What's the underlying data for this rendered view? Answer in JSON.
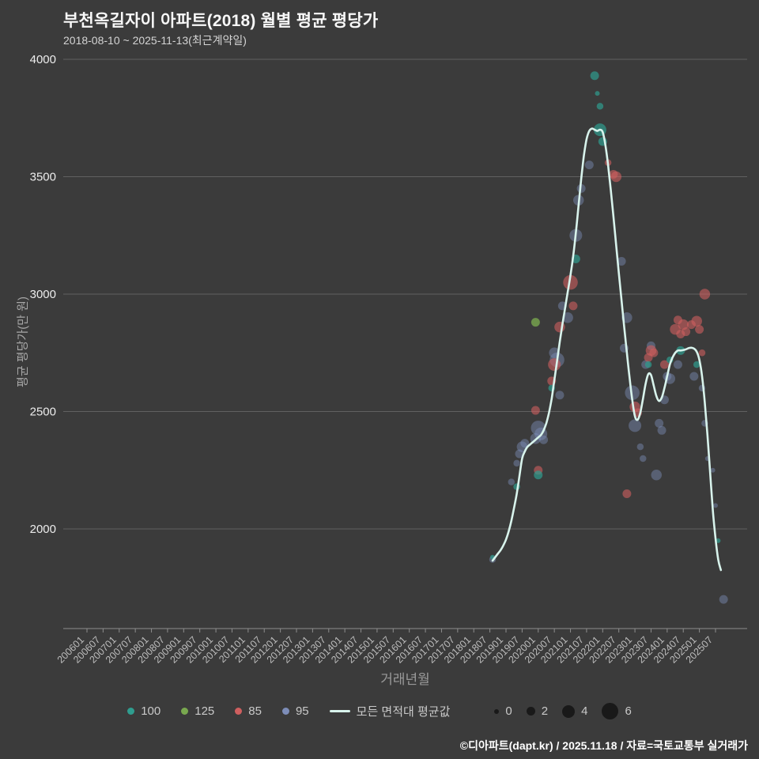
{
  "header": {
    "title": "부천옥길자이 아파트(2018) 월별 평균 평당가",
    "subtitle": "2018-08-10 ~ 2025-11-13(최근계약일)"
  },
  "footer": {
    "credit": "©디아파트(dapt.kr) / 2025.11.18 / 자료=국토교통부 실거래가"
  },
  "chart_data": {
    "type": "scatter",
    "title": "부천옥길자이 아파트(2018) 월별 평균 평당가",
    "subtitle": "2018-08-10 ~ 2025-11-13(최근계약일)",
    "xlabel": "거래년월",
    "ylabel": "평균 평당가(만 원)",
    "grid": true,
    "ylim": [
      1576,
      4000
    ],
    "y_ticks": [
      4000,
      3500,
      3000,
      2500,
      2000
    ],
    "x_ticks": [
      "200601",
      "200607",
      "200701",
      "200707",
      "200801",
      "200807",
      "200901",
      "200907",
      "201001",
      "201007",
      "201101",
      "201107",
      "201201",
      "201207",
      "201301",
      "201307",
      "201401",
      "201407",
      "201501",
      "201507",
      "201601",
      "201607",
      "201701",
      "201707",
      "201801",
      "201807",
      "201901",
      "201907",
      "202001",
      "202007",
      "202101",
      "202107",
      "202201",
      "202207",
      "202301",
      "202307",
      "202401",
      "202407",
      "202501",
      "202507"
    ],
    "colors": {
      "100": "#2f9d8f",
      "125": "#79a84f",
      "85": "#cf5f5f",
      "95": "#7d8db8",
      "avg_line": "#d8f3ec"
    },
    "opacity": {
      "100": 0.7,
      "125": 0.8,
      "85": 0.6,
      "95": 0.45
    },
    "draw_order": [
      "95",
      "85",
      "125",
      "100"
    ],
    "legend": [
      {
        "label": "100",
        "color": "#2f9d8f",
        "type": "dot"
      },
      {
        "label": "125",
        "color": "#79a84f",
        "type": "dot"
      },
      {
        "label": "85",
        "color": "#cf5f5f",
        "type": "dot"
      },
      {
        "label": "95",
        "color": "#7d8db8",
        "type": "dot"
      },
      {
        "label": "모든 면적대 평균값",
        "color": "#d8f3ec",
        "type": "line"
      }
    ],
    "size_legend": [
      0,
      2,
      4,
      6
    ],
    "avg_line": {
      "name": "모든 면적대 평균값",
      "points": [
        [
          "201808",
          1865
        ],
        [
          "201809",
          1880
        ],
        [
          "201810",
          1895
        ],
        [
          "201811",
          1910
        ],
        [
          "201812",
          1930
        ],
        [
          "201901",
          1955
        ],
        [
          "201902",
          1990
        ],
        [
          "201903",
          2035
        ],
        [
          "201904",
          2090
        ],
        [
          "201905",
          2150
        ],
        [
          "201906",
          2225
        ],
        [
          "201907",
          2300
        ],
        [
          "201908",
          2330
        ],
        [
          "201909",
          2350
        ],
        [
          "201910",
          2360
        ],
        [
          "201911",
          2370
        ],
        [
          "201912",
          2380
        ],
        [
          "202001",
          2390
        ],
        [
          "202002",
          2400
        ],
        [
          "202003",
          2420
        ],
        [
          "202004",
          2450
        ],
        [
          "202005",
          2495
        ],
        [
          "202006",
          2555
        ],
        [
          "202007",
          2635
        ],
        [
          "202008",
          2715
        ],
        [
          "202009",
          2795
        ],
        [
          "202010",
          2870
        ],
        [
          "202011",
          2940
        ],
        [
          "202012",
          3010
        ],
        [
          "202101",
          3080
        ],
        [
          "202102",
          3160
        ],
        [
          "202103",
          3260
        ],
        [
          "202104",
          3375
        ],
        [
          "202105",
          3490
        ],
        [
          "202106",
          3590
        ],
        [
          "202107",
          3660
        ],
        [
          "202108",
          3695
        ],
        [
          "202109",
          3705
        ],
        [
          "202110",
          3700
        ],
        [
          "202111",
          3695
        ],
        [
          "202112",
          3700
        ],
        [
          "202201",
          3690
        ],
        [
          "202202",
          3635
        ],
        [
          "202203",
          3550
        ],
        [
          "202204",
          3445
        ],
        [
          "202205",
          3330
        ],
        [
          "202206",
          3210
        ],
        [
          "202207",
          3090
        ],
        [
          "202208",
          2975
        ],
        [
          "202209",
          2860
        ],
        [
          "202210",
          2750
        ],
        [
          "202211",
          2645
        ],
        [
          "202212",
          2550
        ],
        [
          "202301",
          2480
        ],
        [
          "202302",
          2465
        ],
        [
          "202303",
          2495
        ],
        [
          "202304",
          2555
        ],
        [
          "202305",
          2620
        ],
        [
          "202306",
          2660
        ],
        [
          "202307",
          2655
        ],
        [
          "202308",
          2610
        ],
        [
          "202309",
          2565
        ],
        [
          "202310",
          2545
        ],
        [
          "202311",
          2560
        ],
        [
          "202312",
          2600
        ],
        [
          "202401",
          2650
        ],
        [
          "202402",
          2700
        ],
        [
          "202403",
          2730
        ],
        [
          "202404",
          2750
        ],
        [
          "202405",
          2760
        ],
        [
          "202406",
          2760
        ],
        [
          "202407",
          2762
        ],
        [
          "202408",
          2765
        ],
        [
          "202409",
          2770
        ],
        [
          "202410",
          2772
        ],
        [
          "202411",
          2768
        ],
        [
          "202412",
          2755
        ],
        [
          "202501",
          2720
        ],
        [
          "202502",
          2650
        ],
        [
          "202503",
          2540
        ],
        [
          "202504",
          2400
        ],
        [
          "202505",
          2240
        ],
        [
          "202506",
          2080
        ],
        [
          "202507",
          1960
        ],
        [
          "202508",
          1870
        ],
        [
          "202509",
          1825
        ]
      ]
    },
    "bubbles_format": [
      "series",
      "yyyymm",
      "price",
      "count"
    ],
    "bubbles": [
      [
        "95",
        "201808",
        1870,
        1
      ],
      [
        "95",
        "201903",
        2200,
        1
      ],
      [
        "95",
        "201905",
        2280,
        1
      ],
      [
        "95",
        "201906",
        2320,
        2
      ],
      [
        "95",
        "201907",
        2350,
        3
      ],
      [
        "95",
        "201908",
        2365,
        2
      ],
      [
        "95",
        "201912",
        2385,
        3
      ],
      [
        "95",
        "202001",
        2430,
        5
      ],
      [
        "95",
        "202002",
        2405,
        4
      ],
      [
        "95",
        "202003",
        2380,
        2
      ],
      [
        "95",
        "202007",
        2750,
        3
      ],
      [
        "95",
        "202008",
        2720,
        5
      ],
      [
        "95",
        "202009",
        2570,
        2
      ],
      [
        "95",
        "202010",
        2950,
        2
      ],
      [
        "95",
        "202012",
        2900,
        3
      ],
      [
        "95",
        "202103",
        3250,
        4
      ],
      [
        "95",
        "202104",
        3400,
        3
      ],
      [
        "95",
        "202105",
        3450,
        2
      ],
      [
        "95",
        "202108",
        3550,
        2
      ],
      [
        "95",
        "202208",
        3140,
        2
      ],
      [
        "95",
        "202209",
        2770,
        2
      ],
      [
        "95",
        "202210",
        2900,
        3
      ],
      [
        "95",
        "202212",
        2580,
        5
      ],
      [
        "95",
        "202301",
        2440,
        4
      ],
      [
        "95",
        "202303",
        2350,
        1
      ],
      [
        "95",
        "202304",
        2300,
        1
      ],
      [
        "95",
        "202305",
        2700,
        2
      ],
      [
        "95",
        "202307",
        2780,
        2
      ],
      [
        "95",
        "202309",
        2230,
        3
      ],
      [
        "95",
        "202310",
        2450,
        2
      ],
      [
        "95",
        "202311",
        2420,
        2
      ],
      [
        "95",
        "202312",
        2550,
        2
      ],
      [
        "95",
        "202401",
        2650,
        2
      ],
      [
        "95",
        "202402",
        2640,
        3
      ],
      [
        "95",
        "202405",
        2700,
        2
      ],
      [
        "95",
        "202411",
        2650,
        2
      ],
      [
        "95",
        "202502",
        2600,
        1
      ],
      [
        "95",
        "202503",
        2450,
        1
      ],
      [
        "95",
        "202504",
        2300,
        0
      ],
      [
        "95",
        "202506",
        2250,
        0
      ],
      [
        "95",
        "202507",
        2100,
        0
      ],
      [
        "95",
        "202510",
        1700,
        2
      ],
      [
        "85",
        "201912",
        2505,
        2
      ],
      [
        "85",
        "202001",
        2250,
        2
      ],
      [
        "85",
        "202006",
        2630,
        2
      ],
      [
        "85",
        "202007",
        2700,
        4
      ],
      [
        "85",
        "202009",
        2860,
        3
      ],
      [
        "85",
        "202101",
        3050,
        5
      ],
      [
        "85",
        "202102",
        2950,
        2
      ],
      [
        "85",
        "202203",
        3560,
        1
      ],
      [
        "85",
        "202205",
        3510,
        2
      ],
      [
        "85",
        "202206",
        3500,
        3
      ],
      [
        "85",
        "202301",
        2520,
        3
      ],
      [
        "85",
        "202302",
        2495,
        2
      ],
      [
        "85",
        "202210",
        2150,
        2
      ],
      [
        "85",
        "202306",
        2730,
        2
      ],
      [
        "85",
        "202307",
        2760,
        3
      ],
      [
        "85",
        "202308",
        2750,
        2
      ],
      [
        "85",
        "202312",
        2700,
        2
      ],
      [
        "85",
        "202404",
        2850,
        3
      ],
      [
        "85",
        "202405",
        2890,
        2
      ],
      [
        "85",
        "202406",
        2830,
        2
      ],
      [
        "85",
        "202407",
        2870,
        3
      ],
      [
        "85",
        "202408",
        2840,
        2
      ],
      [
        "85",
        "202410",
        2870,
        2
      ],
      [
        "85",
        "202412",
        2885,
        3
      ],
      [
        "85",
        "202501",
        2850,
        2
      ],
      [
        "85",
        "202502",
        2750,
        1
      ],
      [
        "85",
        "202503",
        3000,
        3
      ],
      [
        "125",
        "201912",
        2880,
        2
      ],
      [
        "100",
        "201808",
        1880,
        0
      ],
      [
        "100",
        "201905",
        2180,
        1
      ],
      [
        "100",
        "202001",
        2230,
        2
      ],
      [
        "100",
        "202006",
        2600,
        1
      ],
      [
        "100",
        "202103",
        3150,
        2
      ],
      [
        "100",
        "202110",
        3930,
        2
      ],
      [
        "100",
        "202111",
        3855,
        0
      ],
      [
        "100",
        "202112",
        3800,
        1
      ],
      [
        "100",
        "202112",
        3700,
        4
      ],
      [
        "100",
        "202201",
        3650,
        2
      ],
      [
        "100",
        "202306",
        2700,
        1
      ],
      [
        "100",
        "202402",
        2720,
        1
      ],
      [
        "100",
        "202406",
        2760,
        2
      ],
      [
        "100",
        "202412",
        2700,
        1
      ],
      [
        "100",
        "202508",
        1950,
        0
      ]
    ]
  }
}
